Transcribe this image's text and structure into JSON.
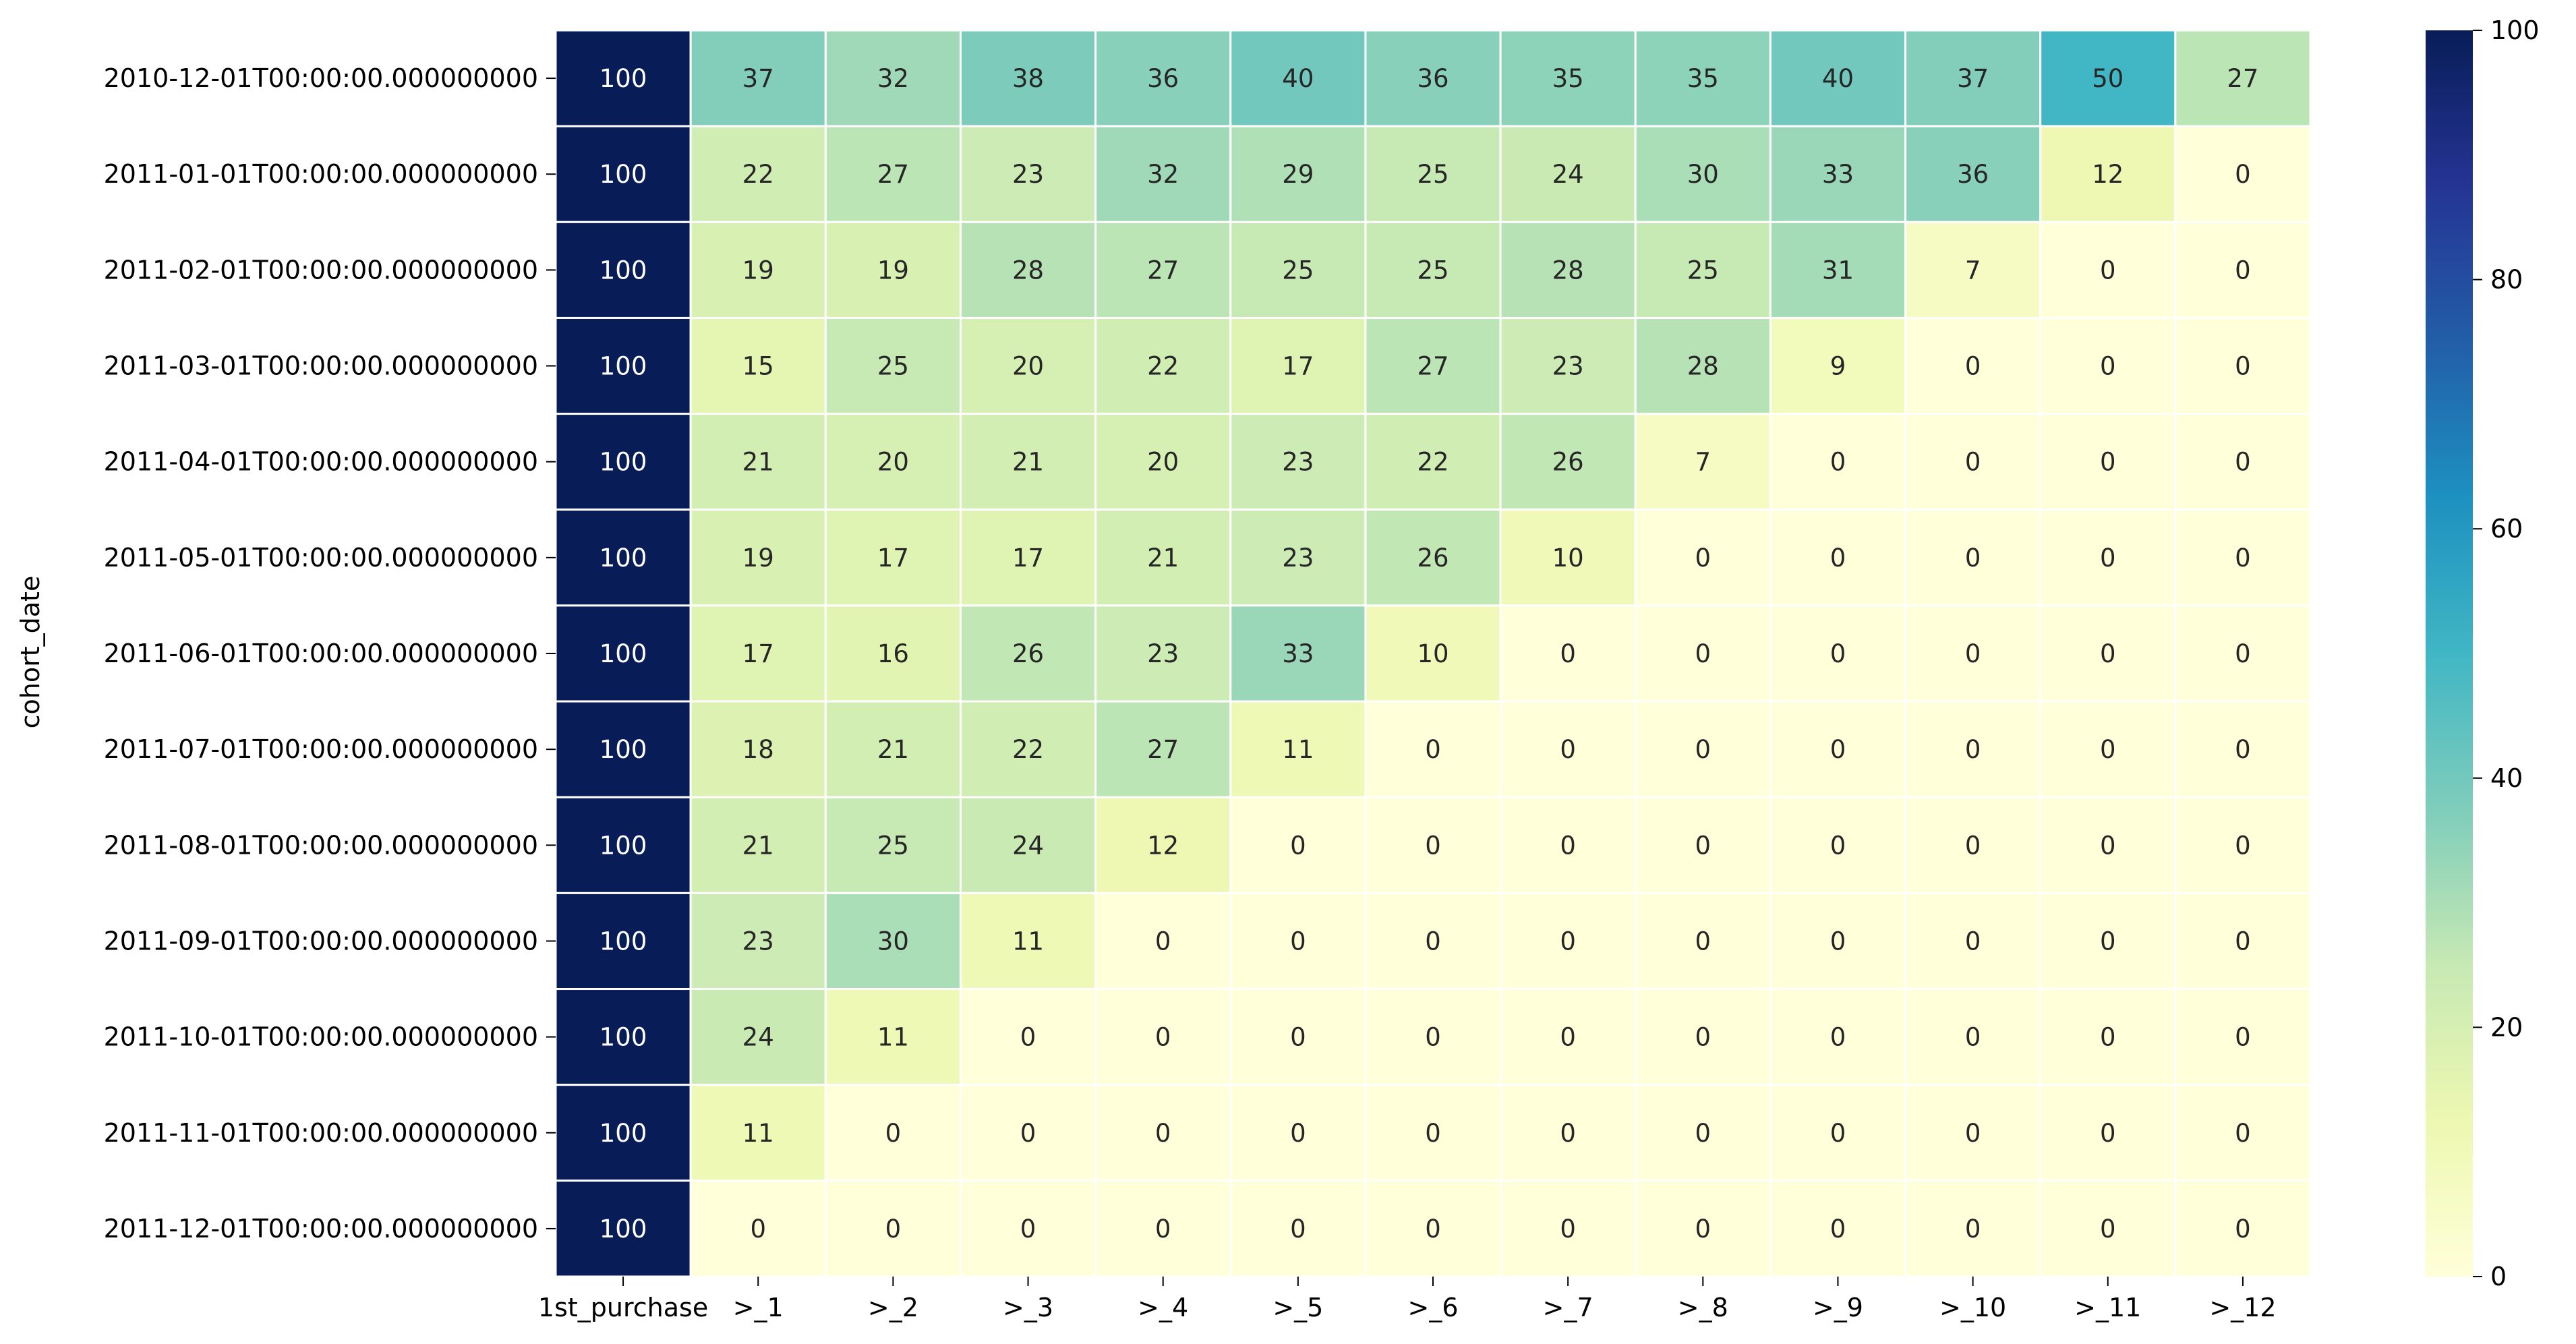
{
  "chart_data": {
    "type": "heatmap",
    "title": "",
    "xlabel": "",
    "ylabel": "cohort_date",
    "x_categories": [
      "1st_purchase",
      ">_1",
      ">_2",
      ">_3",
      ">_4",
      ">_5",
      ">_6",
      ">_7",
      ">_8",
      ">_9",
      ">_10",
      ">_11",
      ">_12"
    ],
    "y_categories": [
      "2010-12-01T00:00:00.000000000",
      "2011-01-01T00:00:00.000000000",
      "2011-02-01T00:00:00.000000000",
      "2011-03-01T00:00:00.000000000",
      "2011-04-01T00:00:00.000000000",
      "2011-05-01T00:00:00.000000000",
      "2011-06-01T00:00:00.000000000",
      "2011-07-01T00:00:00.000000000",
      "2011-08-01T00:00:00.000000000",
      "2011-09-01T00:00:00.000000000",
      "2011-10-01T00:00:00.000000000",
      "2011-11-01T00:00:00.000000000",
      "2011-12-01T00:00:00.000000000"
    ],
    "values": [
      [
        100,
        37,
        32,
        38,
        36,
        40,
        36,
        35,
        35,
        40,
        37,
        50,
        27
      ],
      [
        100,
        22,
        27,
        23,
        32,
        29,
        25,
        24,
        30,
        33,
        36,
        12,
        0
      ],
      [
        100,
        19,
        19,
        28,
        27,
        25,
        25,
        28,
        25,
        31,
        7,
        0,
        0
      ],
      [
        100,
        15,
        25,
        20,
        22,
        17,
        27,
        23,
        28,
        9,
        0,
        0,
        0
      ],
      [
        100,
        21,
        20,
        21,
        20,
        23,
        22,
        26,
        7,
        0,
        0,
        0,
        0
      ],
      [
        100,
        19,
        17,
        17,
        21,
        23,
        26,
        10,
        0,
        0,
        0,
        0,
        0
      ],
      [
        100,
        17,
        16,
        26,
        23,
        33,
        10,
        0,
        0,
        0,
        0,
        0,
        0
      ],
      [
        100,
        18,
        21,
        22,
        27,
        11,
        0,
        0,
        0,
        0,
        0,
        0,
        0
      ],
      [
        100,
        21,
        25,
        24,
        12,
        0,
        0,
        0,
        0,
        0,
        0,
        0,
        0
      ],
      [
        100,
        23,
        30,
        11,
        0,
        0,
        0,
        0,
        0,
        0,
        0,
        0,
        0
      ],
      [
        100,
        24,
        11,
        0,
        0,
        0,
        0,
        0,
        0,
        0,
        0,
        0,
        0
      ],
      [
        100,
        11,
        0,
        0,
        0,
        0,
        0,
        0,
        0,
        0,
        0,
        0,
        0
      ],
      [
        100,
        0,
        0,
        0,
        0,
        0,
        0,
        0,
        0,
        0,
        0,
        0,
        0
      ]
    ],
    "value_range": [
      0,
      100
    ],
    "colormap": "YlGnBu",
    "colormap_stops": [
      "#ffffd9",
      "#edf8b1",
      "#c7e9b4",
      "#7fcdbb",
      "#41b6c4",
      "#1d91c0",
      "#225ea8",
      "#253494",
      "#081d58"
    ],
    "cell_border_color": "#ffffff",
    "colorbar": {
      "ticks": [
        0,
        20,
        40,
        60,
        80,
        100
      ],
      "tick_labels": [
        "0",
        "20",
        "40",
        "60",
        "80",
        "100"
      ],
      "placement": "right"
    }
  }
}
